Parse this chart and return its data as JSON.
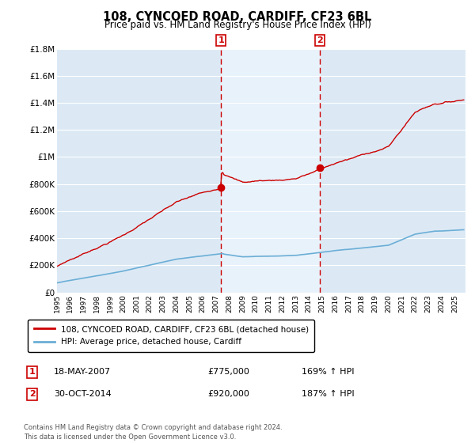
{
  "title": "108, CYNCOED ROAD, CARDIFF, CF23 6BL",
  "subtitle": "Price paid vs. HM Land Registry's House Price Index (HPI)",
  "title_fontsize": 10.5,
  "subtitle_fontsize": 8.5,
  "background_color": "#ffffff",
  "plot_bg_color": "#dce9f5",
  "shade_color": "#c8dcf0",
  "ylim": [
    0,
    1800000
  ],
  "yticks": [
    0,
    200000,
    400000,
    600000,
    800000,
    1000000,
    1200000,
    1400000,
    1600000,
    1800000
  ],
  "ytick_labels": [
    "£0",
    "£200K",
    "£400K",
    "£600K",
    "£800K",
    "£1M",
    "£1.2M",
    "£1.4M",
    "£1.6M",
    "£1.8M"
  ],
  "xmin": 1995.0,
  "xmax": 2025.8,
  "sale1_year": 2007.37,
  "sale1_price": 775000,
  "sale2_year": 2014.83,
  "sale2_price": 920000,
  "legend1": "108, CYNCOED ROAD, CARDIFF, CF23 6BL (detached house)",
  "legend2": "HPI: Average price, detached house, Cardiff",
  "line1_color": "#cc0000",
  "line2_color": "#6baed6",
  "vline_color": "#cc0000",
  "marker_box_color": "#cc0000",
  "grid_color": "#ffffff",
  "footer": "Contains HM Land Registry data © Crown copyright and database right 2024.\nThis data is licensed under the Open Government Licence v3.0."
}
